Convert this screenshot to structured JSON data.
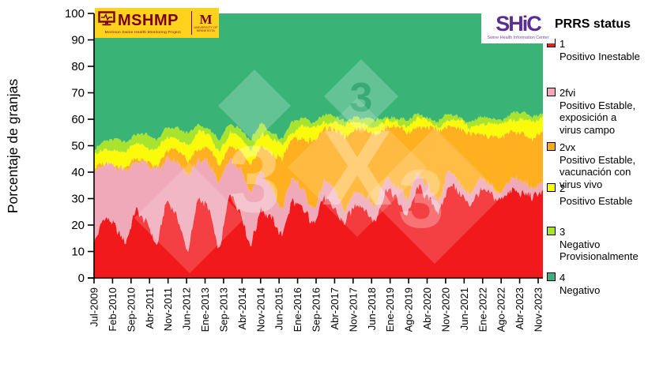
{
  "logos": {
    "mshmp": {
      "acronym": "MSHMP",
      "subtitle": "Morrison Swine Health Monitoring Project"
    },
    "umn": {
      "mark": "M",
      "name": "University of Minnesota"
    },
    "shic": {
      "acronym": "SHiC",
      "subtitle": "Swine Health Information Center"
    }
  },
  "legend": {
    "title": "PRRS status",
    "items": [
      {
        "code": "1",
        "desc": "Positivo Inestable",
        "color": "#EE1C1C"
      },
      {
        "code": "2fvi",
        "desc": "Positivo Estable,\nexposición a\nvirus campo",
        "color": "#EFA9B8"
      },
      {
        "code": "2vx",
        "desc": "Positivo Estable,\nvacunación con\nvirus vivo",
        "color": "#F7AC1E"
      },
      {
        "code": "2",
        "desc": "Positivo Estable",
        "color": "#FFFF00"
      },
      {
        "code": "3",
        "desc": "Negativo\nProvisionalmente",
        "color": "#A8E42F"
      },
      {
        "code": "4",
        "desc": "Negativo",
        "color": "#3FAE7C"
      }
    ]
  },
  "watermark": {
    "text": "3X3"
  },
  "chart_data": {
    "type": "area",
    "stacked": true,
    "title": "",
    "ylabel": "Porcentaje de granjas",
    "ylim": [
      0,
      100
    ],
    "grid": false,
    "legend_position": "right",
    "y_ticks": [
      0,
      10,
      20,
      30,
      40,
      50,
      60,
      70,
      80,
      90,
      100
    ],
    "x_tick_labels": [
      "Jul-2009",
      "Feb-2010",
      "Sep-2010",
      "Abr-2011",
      "Nov-2011",
      "Jun-2012",
      "Ene-2013",
      "Sep-2013",
      "Abr-2014",
      "Nov-2014",
      "Jun-2015",
      "Ene-2016",
      "Sep-2016",
      "Abr-2017",
      "Nov-2017",
      "Jun-2018",
      "Ene-2019",
      "Ago-2019",
      "Abr-2020",
      "Nov-2020",
      "Jun-2021",
      "Ene-2022",
      "Ago-2022",
      "Abr-2023",
      "Nov-2023"
    ],
    "sample_x": [
      "Jul-2009",
      "Nov-2009",
      "Mar-2010",
      "Jul-2010",
      "Nov-2010",
      "Mar-2011",
      "Jul-2011",
      "Nov-2011",
      "Mar-2012",
      "Jul-2012",
      "Nov-2012",
      "Mar-2013",
      "Jul-2013",
      "Nov-2013",
      "Mar-2014",
      "Jul-2014",
      "Nov-2014",
      "Mar-2015",
      "Jul-2015",
      "Nov-2015",
      "Mar-2016",
      "Jul-2016",
      "Nov-2016",
      "Mar-2017",
      "Jul-2017",
      "Nov-2017",
      "Mar-2018",
      "Jul-2018",
      "Nov-2018",
      "Mar-2019",
      "Jul-2019",
      "Nov-2019",
      "Mar-2020",
      "Jul-2020",
      "Nov-2020",
      "Mar-2021",
      "Jul-2021",
      "Nov-2021",
      "Mar-2022",
      "Jul-2022",
      "Nov-2022",
      "Mar-2023",
      "Jul-2023",
      "Nov-2023"
    ],
    "series_note": "cumulative_top = stacked upper boundary (percent of farms); band value = this top minus previous top",
    "series": [
      {
        "id": "1",
        "name": "Positivo Inestable",
        "color": "#F2191D",
        "cumulative_top": [
          13,
          24,
          20,
          12,
          26,
          22,
          12,
          29,
          24,
          10,
          30,
          26,
          10,
          32,
          25,
          12,
          27,
          22,
          16,
          30,
          26,
          20,
          31,
          27,
          20,
          28,
          26,
          22,
          33,
          30,
          24,
          34,
          30,
          25,
          36,
          32,
          28,
          33,
          31,
          29,
          34,
          32,
          30,
          33
        ]
      },
      {
        "id": "2fvi",
        "name": "Positivo Estable, exposición a virus campo",
        "color": "#F0A9B8",
        "cumulative_top": [
          41,
          43,
          42,
          41,
          44,
          43,
          40,
          45,
          44,
          38,
          45,
          44,
          36,
          45,
          42,
          32,
          40,
          34,
          26,
          38,
          33,
          26,
          37,
          33,
          25,
          33,
          31,
          27,
          38,
          35,
          29,
          39,
          35,
          29,
          40,
          36,
          32,
          37,
          35,
          33,
          38,
          36,
          34,
          37
        ]
      },
      {
        "id": "2vx",
        "name": "Positivo Estable, vacunación con virus vivo",
        "color": "#FFB020",
        "cumulative_top": [
          41,
          43,
          42.5,
          41.5,
          45,
          44,
          42,
          48,
          48,
          44,
          50,
          49,
          42,
          50,
          48,
          42,
          50,
          47,
          45,
          52,
          53,
          52,
          56,
          56,
          54,
          56,
          56,
          55,
          57,
          57,
          55,
          58,
          57,
          55,
          58,
          57,
          54,
          55,
          54,
          53,
          55,
          55,
          53,
          55
        ]
      },
      {
        "id": "2",
        "name": "Positivo Estable",
        "color": "#FAFA0A",
        "cumulative_top": [
          46,
          49,
          48,
          47,
          51,
          50,
          48,
          53,
          53,
          50,
          55,
          54,
          48,
          55,
          53,
          48,
          55,
          52,
          50,
          56,
          57,
          56,
          59,
          59,
          57,
          59,
          58,
          57,
          59,
          59,
          57,
          60,
          59,
          57,
          60,
          59,
          57,
          59,
          58,
          58,
          60,
          60,
          58,
          61
        ]
      },
      {
        "id": "3",
        "name": "Negativo Provisionalmente",
        "color": "#A8E42F",
        "cumulative_top": [
          49,
          52,
          52,
          51,
          55,
          54,
          52,
          57,
          57,
          54,
          58,
          57,
          52,
          58,
          57,
          52,
          58,
          55,
          53,
          59,
          60,
          59,
          62,
          61,
          59,
          61,
          60,
          59,
          61,
          61,
          59,
          62,
          61,
          59,
          62,
          61,
          59,
          61,
          60,
          60,
          62,
          62,
          61,
          63
        ]
      },
      {
        "id": "4",
        "name": "Negativo",
        "color": "#39B376",
        "cumulative_top": 100
      }
    ]
  }
}
